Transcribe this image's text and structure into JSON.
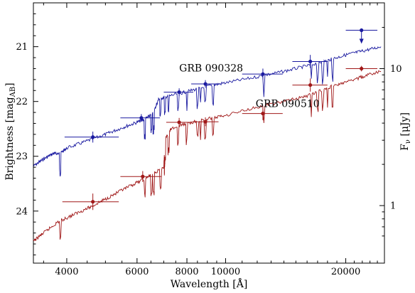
{
  "chart_data": {
    "type": "scatter",
    "xlabel": "Wavelength [Å]",
    "ylabel": "Brightness [mag",
    "ylabel_sub": "AB",
    "ylabel_end": "]",
    "y2label": "F",
    "y2label_sub": "ν",
    "y2label_end": " [μJy]",
    "x_scale": "log",
    "xlim": [
      3300,
      25000
    ],
    "ylim": [
      24.95,
      20.2
    ],
    "x_ticks": [
      {
        "value": 4000,
        "label": "4000"
      },
      {
        "value": 6000,
        "label": "6000"
      },
      {
        "value": 8000,
        "label": "8000"
      },
      {
        "value": 10000,
        "label": "10000"
      },
      {
        "value": 20000,
        "label": "20000"
      }
    ],
    "y_ticks": [
      {
        "value": 21,
        "label": "21"
      },
      {
        "value": 22,
        "label": "22"
      },
      {
        "value": 23,
        "label": "23"
      },
      {
        "value": 24,
        "label": "24"
      }
    ],
    "y2_ticks": [
      {
        "value_ujy": 10,
        "label": "10"
      },
      {
        "value_ujy": 1,
        "label": "1"
      }
    ],
    "series": [
      {
        "name": "GRB 090328",
        "color": "#1a1aa0",
        "points": [
          {
            "x": 4650,
            "y": 22.65,
            "xerr": [
              3950,
              5400
            ],
            "yerr": 0.1
          },
          {
            "x": 6150,
            "y": 22.3,
            "xerr": [
              5450,
              6850
            ],
            "yerr": 0.07
          },
          {
            "x": 7650,
            "y": 21.83,
            "xerr": [
              7000,
              8300
            ],
            "yerr": 0.07
          },
          {
            "x": 8900,
            "y": 21.68,
            "xerr": [
              8200,
              9700
            ],
            "yerr": 0.07
          },
          {
            "x": 12400,
            "y": 21.5,
            "xerr": [
              11000,
              13900
            ],
            "yerr": 0.1
          },
          {
            "x": 16300,
            "y": 21.27,
            "xerr": [
              14700,
              18000
            ],
            "yerr": 0.12
          },
          {
            "x": 21900,
            "y": 20.7,
            "xerr": [
              20000,
              24000
            ],
            "upper_limit": true
          }
        ],
        "model": [
          [
            3300,
            23.18
          ],
          [
            3500,
            23.05
          ],
          [
            3700,
            22.95
          ],
          [
            3850,
            22.95
          ],
          [
            4000,
            22.85
          ],
          [
            4500,
            22.72
          ],
          [
            5000,
            22.6
          ],
          [
            5500,
            22.48
          ],
          [
            6000,
            22.38
          ],
          [
            6350,
            22.3
          ],
          [
            6600,
            22.2
          ],
          [
            6800,
            21.95
          ],
          [
            7200,
            21.9
          ],
          [
            8000,
            21.82
          ],
          [
            9000,
            21.72
          ],
          [
            10000,
            21.66
          ],
          [
            12000,
            21.55
          ],
          [
            14000,
            21.45
          ],
          [
            16000,
            21.35
          ],
          [
            18000,
            21.25
          ],
          [
            20000,
            21.15
          ],
          [
            22000,
            21.08
          ],
          [
            24500,
            21.0
          ]
        ],
        "label_pos": [
          9200,
          21.4
        ]
      },
      {
        "name": "GRB 090510",
        "color": "#a01818",
        "points": [
          {
            "x": 4650,
            "y": 23.83,
            "xerr": [
              3900,
              5400
            ],
            "yerr": 0.15
          },
          {
            "x": 6200,
            "y": 23.37,
            "xerr": [
              5450,
              6900
            ],
            "yerr": 0.1
          },
          {
            "x": 7650,
            "y": 22.38,
            "xerr": [
              7100,
              8250
            ],
            "yerr": 0.08
          },
          {
            "x": 8900,
            "y": 22.37,
            "xerr": [
              8250,
              9600
            ],
            "yerr": 0.08
          },
          {
            "x": 12400,
            "y": 22.22,
            "xerr": [
              11000,
              13900
            ],
            "yerr": 0.12
          },
          {
            "x": 16300,
            "y": 21.7,
            "xerr": [
              14700,
              18000
            ],
            "yerr": 0.12
          },
          {
            "x": 21900,
            "y": 21.4,
            "xerr": [
              20000,
              24000
            ],
            "yerr": 0.05
          }
        ],
        "model": [
          [
            3300,
            24.55
          ],
          [
            3500,
            24.4
          ],
          [
            3800,
            24.2
          ],
          [
            4200,
            24.05
          ],
          [
            4600,
            23.92
          ],
          [
            5000,
            23.78
          ],
          [
            5500,
            23.62
          ],
          [
            6000,
            23.48
          ],
          [
            6500,
            23.35
          ],
          [
            7000,
            23.2
          ],
          [
            7050,
            22.7
          ],
          [
            7300,
            22.5
          ],
          [
            8000,
            22.4
          ],
          [
            9000,
            22.32
          ],
          [
            10000,
            22.25
          ],
          [
            12000,
            22.1
          ],
          [
            14000,
            22.0
          ],
          [
            16000,
            21.9
          ],
          [
            18000,
            21.75
          ],
          [
            20000,
            21.65
          ],
          [
            22000,
            21.55
          ],
          [
            24500,
            21.45
          ]
        ],
        "label_pos": [
          14300,
          22.05
        ]
      }
    ],
    "grid": false,
    "legend": "none"
  }
}
